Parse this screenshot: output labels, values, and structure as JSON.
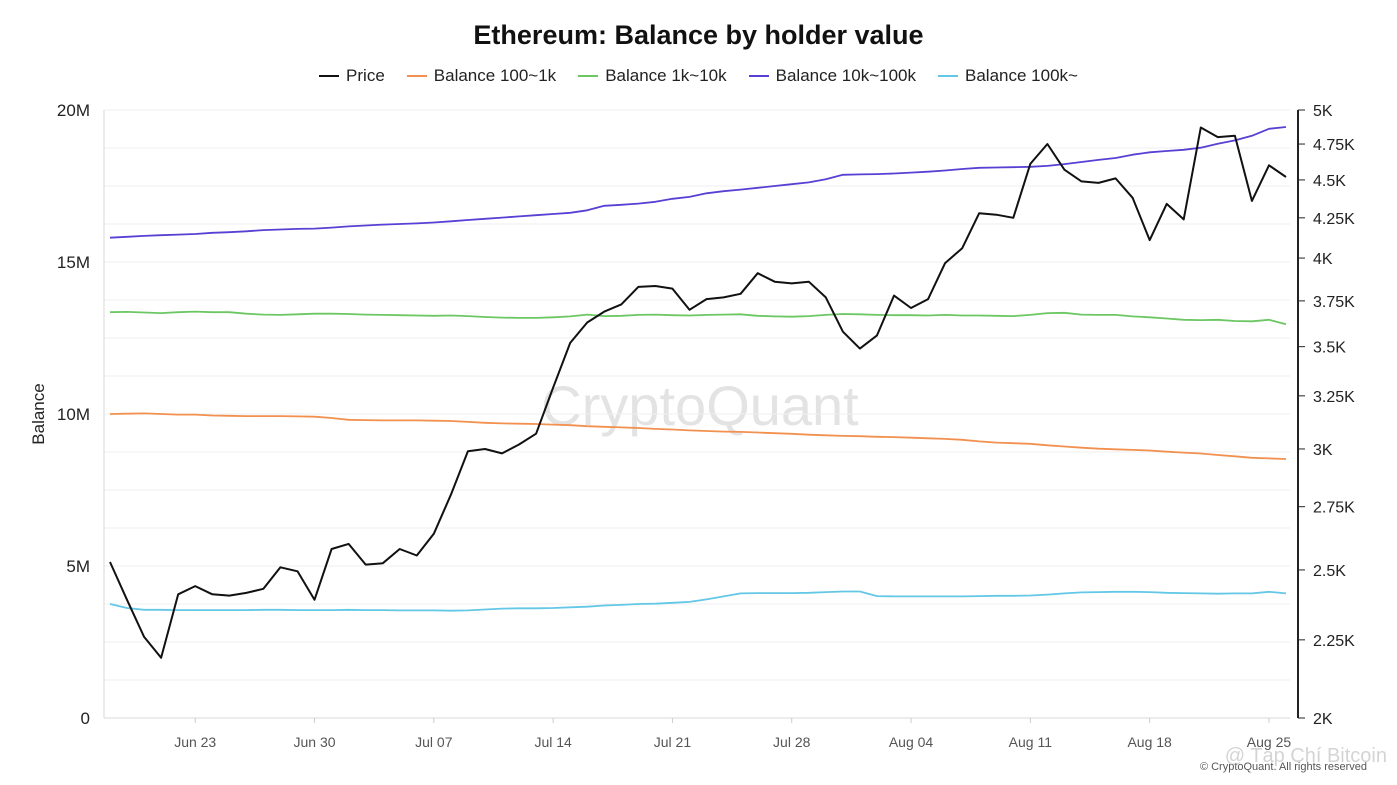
{
  "chart_data": {
    "type": "line",
    "title": "Ethereum: Balance by holder value",
    "ylabel": "Balance",
    "y_left": {
      "ticks": [
        "0",
        "5M",
        "10M",
        "15M",
        "20M"
      ],
      "tick_values": [
        0,
        5000000,
        10000000,
        15000000,
        20000000
      ],
      "range": [
        0,
        20000000
      ]
    },
    "y_right": {
      "scale": "log",
      "ticks": [
        "2K",
        "2.25K",
        "2.5K",
        "2.75K",
        "3K",
        "3.25K",
        "3.5K",
        "3.75K",
        "4K",
        "4.25K",
        "4.5K",
        "4.75K",
        "5K"
      ],
      "tick_values": [
        2000,
        2250,
        2500,
        2750,
        3000,
        3250,
        3500,
        3750,
        4000,
        4250,
        4500,
        4750,
        5000
      ],
      "range": [
        2000,
        5000
      ]
    },
    "x_start": "2025-06-18",
    "x_ticks": [
      "Jun 23",
      "Jun 30",
      "Jul 07",
      "Jul 14",
      "Jul 21",
      "Jul 28",
      "Aug 04",
      "Aug 11",
      "Aug 18",
      "Aug 25"
    ],
    "series": [
      {
        "name": "Price",
        "axis": "right",
        "color": "#111111",
        "values": [
          2530,
          2390,
          2260,
          2190,
          2410,
          2440,
          2410,
          2405,
          2415,
          2430,
          2510,
          2495,
          2390,
          2580,
          2600,
          2520,
          2525,
          2580,
          2555,
          2640,
          2800,
          2990,
          3000,
          2980,
          3020,
          3070,
          3290,
          3520,
          3630,
          3690,
          3730,
          3830,
          3835,
          3820,
          3700,
          3760,
          3770,
          3790,
          3910,
          3860,
          3850,
          3860,
          3770,
          3580,
          3490,
          3560,
          3780,
          3710,
          3760,
          3970,
          4060,
          4280,
          4270,
          4250,
          4610,
          4750,
          4570,
          4490,
          4480,
          4510,
          4380,
          4110,
          4340,
          4240,
          4870,
          4800,
          4810,
          4360,
          4600,
          4520
        ]
      },
      {
        "name": "Balance 100~1k",
        "axis": "left",
        "color": "#f2914f",
        "values": [
          10000000,
          10010000,
          10020000,
          10000000,
          9980000,
          9980000,
          9950000,
          9940000,
          9930000,
          9930000,
          9930000,
          9920000,
          9910000,
          9870000,
          9810000,
          9800000,
          9790000,
          9790000,
          9790000,
          9780000,
          9770000,
          9740000,
          9710000,
          9690000,
          9680000,
          9670000,
          9650000,
          9630000,
          9600000,
          9580000,
          9560000,
          9540000,
          9510000,
          9490000,
          9460000,
          9440000,
          9420000,
          9410000,
          9390000,
          9370000,
          9350000,
          9320000,
          9300000,
          9280000,
          9270000,
          9250000,
          9240000,
          9220000,
          9200000,
          9180000,
          9150000,
          9100000,
          9060000,
          9040000,
          9020000,
          8970000,
          8930000,
          8890000,
          8860000,
          8840000,
          8820000,
          8800000,
          8760000,
          8730000,
          8700000,
          8650000,
          8610000,
          8560000,
          8540000,
          8520000
        ]
      },
      {
        "name": "Balance 1k~10k",
        "axis": "left",
        "color": "#6cc763",
        "values": [
          13350000,
          13360000,
          13340000,
          13320000,
          13350000,
          13370000,
          13350000,
          13350000,
          13300000,
          13270000,
          13260000,
          13280000,
          13300000,
          13300000,
          13290000,
          13270000,
          13260000,
          13250000,
          13240000,
          13230000,
          13240000,
          13220000,
          13190000,
          13170000,
          13160000,
          13160000,
          13180000,
          13210000,
          13270000,
          13220000,
          13230000,
          13260000,
          13270000,
          13250000,
          13240000,
          13260000,
          13270000,
          13280000,
          13230000,
          13210000,
          13200000,
          13220000,
          13260000,
          13290000,
          13280000,
          13260000,
          13250000,
          13250000,
          13240000,
          13260000,
          13240000,
          13240000,
          13230000,
          13220000,
          13260000,
          13320000,
          13330000,
          13270000,
          13260000,
          13260000,
          13210000,
          13180000,
          13140000,
          13100000,
          13090000,
          13100000,
          13060000,
          13050000,
          13100000,
          12950000
        ]
      },
      {
        "name": "Balance 10k~100k",
        "axis": "left",
        "color": "#5a3fd4",
        "values": [
          15800000,
          15830000,
          15860000,
          15880000,
          15900000,
          15920000,
          15960000,
          15980000,
          16010000,
          16050000,
          16070000,
          16090000,
          16100000,
          16130000,
          16170000,
          16200000,
          16230000,
          16250000,
          16270000,
          16300000,
          16340000,
          16380000,
          16420000,
          16460000,
          16500000,
          16540000,
          16580000,
          16620000,
          16700000,
          16850000,
          16880000,
          16920000,
          16980000,
          17080000,
          17140000,
          17260000,
          17330000,
          17380000,
          17440000,
          17500000,
          17560000,
          17620000,
          17720000,
          17870000,
          17880000,
          17890000,
          17910000,
          17940000,
          17970000,
          18010000,
          18060000,
          18100000,
          18110000,
          18120000,
          18130000,
          18160000,
          18220000,
          18290000,
          18360000,
          18420000,
          18530000,
          18610000,
          18650000,
          18690000,
          18760000,
          18890000,
          19000000,
          19150000,
          19380000,
          19440000
        ]
      },
      {
        "name": "Balance 100k~",
        "axis": "left",
        "color": "#63c7e6",
        "values": [
          3750000,
          3620000,
          3560000,
          3560000,
          3550000,
          3550000,
          3550000,
          3550000,
          3550000,
          3560000,
          3560000,
          3550000,
          3550000,
          3550000,
          3560000,
          3550000,
          3550000,
          3540000,
          3540000,
          3540000,
          3530000,
          3540000,
          3570000,
          3600000,
          3610000,
          3610000,
          3620000,
          3640000,
          3660000,
          3700000,
          3720000,
          3750000,
          3760000,
          3790000,
          3820000,
          3900000,
          4000000,
          4100000,
          4110000,
          4110000,
          4110000,
          4120000,
          4140000,
          4160000,
          4160000,
          4010000,
          4000000,
          4000000,
          4000000,
          4000000,
          4000000,
          4010000,
          4020000,
          4020000,
          4030000,
          4060000,
          4100000,
          4130000,
          4140000,
          4150000,
          4150000,
          4140000,
          4120000,
          4110000,
          4100000,
          4090000,
          4100000,
          4100000,
          4150000,
          4100000
        ]
      }
    ],
    "grid": true,
    "legend_position": "top"
  },
  "watermark": "CryptoQuant",
  "footer": {
    "copyright": "© CryptoQuant. All rights reserved",
    "source_tag": "@ Tạp Chí Bitcoin"
  }
}
